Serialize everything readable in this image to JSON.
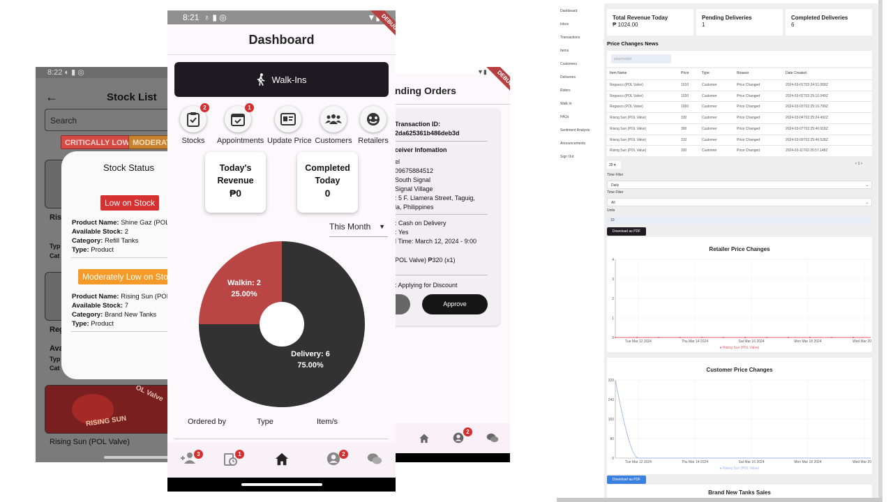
{
  "stock_list": {
    "time": "8:22",
    "title": "Stock List",
    "search_placeholder": "Search",
    "chips": [
      "CRITICALLY LOW",
      "MODERATE"
    ],
    "bg_items": [
      "Ris",
      "Typ",
      "Cat",
      "Reg",
      "Ava",
      "Typ",
      "Cat"
    ],
    "bg_bottom_label": "Rising Sun (POL Valve)",
    "bg_brand": "RISING SUN",
    "bg_valve": "OL Valve",
    "dialog": {
      "title": "Stock Status",
      "low_badge": "Low on Stock",
      "moderate_badge": "Moderately Low on Sto",
      "items": [
        {
          "name_label": "Product Name:",
          "name": "Shine Gaz (POL V",
          "stock_label": "Available Stock:",
          "stock": "2",
          "category_label": "Category:",
          "category": "Refill Tanks",
          "type_label": "Type:",
          "type": "Product"
        },
        {
          "name_label": "Product Name:",
          "name": "Rising Sun (POL V",
          "stock_label": "Available Stock:",
          "stock": "7",
          "category_label": "Category:",
          "category": "Brand New Tanks",
          "type_label": "Type:",
          "type": "Product"
        }
      ]
    }
  },
  "dashboard": {
    "time": "8:21",
    "debug": "DEBUG",
    "title": "Dashboard",
    "walkin_button": "Walk-Ins",
    "actions": [
      {
        "label": "Stocks",
        "badge": "2",
        "icon": "clipboard-check-icon"
      },
      {
        "label": "Appointments",
        "badge": "1",
        "icon": "calendar-check-icon"
      },
      {
        "label": "Update Price",
        "badge": "",
        "icon": "price-tag-icon"
      },
      {
        "label": "Customers",
        "badge": "",
        "icon": "group-icon"
      },
      {
        "label": "Retailers",
        "badge": "",
        "icon": "retailers-icon"
      }
    ],
    "stats": [
      {
        "line1": "Today's",
        "line2": "Revenue",
        "value": "₱0"
      },
      {
        "line1": "Completed",
        "line2": "Today",
        "value": "0"
      }
    ],
    "period": "This Month",
    "chart_data": {
      "type": "pie",
      "categories": [
        "Walkin",
        "Delivery"
      ],
      "values": [
        2,
        6
      ],
      "labels": [
        "Walkin: 2",
        "Delivery: 6"
      ],
      "percent_labels": [
        "25.00%",
        "75.00%"
      ],
      "colors": [
        "#b94545",
        "#323232"
      ]
    },
    "table_headers": [
      "Ordered by",
      "Type",
      "Item/s"
    ],
    "bottom_nav": [
      {
        "icon": "person-add-icon",
        "badge": "3"
      },
      {
        "icon": "pending-clipboard-icon",
        "badge": "1"
      },
      {
        "icon": "home-icon",
        "badge": ""
      },
      {
        "icon": "account-circle-icon",
        "badge": "2"
      },
      {
        "icon": "chat-icon",
        "badge": ""
      }
    ]
  },
  "pending": {
    "title": "nding Orders",
    "debug": "DEBUG",
    "transaction_label": "Transaction ID:",
    "transaction_id": "2da625361b486deb3d",
    "receiver_heading": "ceiver Infomation",
    "receiver_lines": [
      "el",
      "09675884512",
      "South Signal",
      "Signal Village",
      ": 5 F. Llamera Street, Taguig,",
      "la, Philippines"
    ],
    "payment_lines": [
      ": Cash on Delivery",
      ": Yes",
      "l Time: March 12, 2024 - 9:00"
    ],
    "item_line": "POL Valve)  ₱320 (x1)",
    "discount_line": ": Applying for Discount",
    "approve": "Approve",
    "nav_badge": "2"
  },
  "web": {
    "sidebar": [
      "Dashboard",
      "Inbox",
      "Transactions",
      "Items",
      "Customers",
      "Deliveries",
      "Riders",
      "Walk In",
      "FAQs",
      "Sentiment Analysis",
      "Announcements",
      "Sign Out"
    ],
    "cards": [
      {
        "label": "Total Revenue Today",
        "value": "₱ 1024.00"
      },
      {
        "label": "Pending Deliveries",
        "value": "1"
      },
      {
        "label": "Completed Deliveries",
        "value": "6"
      }
    ],
    "news_title": "Price Changes News",
    "search_placeholder": "placeholder",
    "table_headers": [
      "Item Name",
      "Price",
      "Type",
      "Reason",
      "Date Created"
    ],
    "rows": [
      [
        "Regasco (POL Valve)",
        "1010",
        "Customer",
        "Price Changed",
        "2024-03-01T02:24:51.068Z"
      ],
      [
        "Regasco (POL Valve)",
        "1020",
        "Customer",
        "Price Changed",
        "2024-03-02T02:25:10.049Z"
      ],
      [
        "Regasco (POL Valve)",
        "1000",
        "Customer",
        "Price Changed",
        "2024-03-03T02:25:16.799Z"
      ],
      [
        "Rising Sun (POL Valve)",
        "330",
        "Customer",
        "Price Changed",
        "2024-03-04T02:25:24.492Z"
      ],
      [
        "Rising Sun (POL Valve)",
        "300",
        "Customer",
        "Price Changed",
        "2024-03-07T02:25:40.918Z"
      ],
      [
        "Rising Sun (POL Valve)",
        "310",
        "Customer",
        "Price Changed",
        "2024-03-09T02:25:49.528Z"
      ],
      [
        "Rising Sun (POL Valve)",
        "320",
        "Customer",
        "Price Changed",
        "2024-03-11T02:25:57.148Z"
      ]
    ],
    "page_size": "20",
    "page_number": "1",
    "time_filter_label": "Time Filter",
    "time_filter_value": "Daily",
    "time_filter2_label": "Time Filter",
    "time_filter2_value": "All",
    "units_label": "Units",
    "units_value": "10",
    "download_pdf": "Download as PDF",
    "download_pdf2": "Download as PDF",
    "retailer_chart": {
      "type": "line",
      "title": "Retailer Price Changes",
      "x": [
        "Tue Mar 12 2024",
        "Thu Mar 14 2024",
        "Sat Mar 16 2024",
        "Mon Mar 18 2024",
        "Wed Mar 20 20"
      ],
      "yticks": [
        "0",
        "1",
        "2",
        "3",
        "4"
      ],
      "ylim": [
        0,
        4
      ],
      "series": [
        {
          "name": "Rising Sun (POL Valve)",
          "values": [
            0,
            0,
            0,
            0,
            0
          ],
          "color": "#e05c6b"
        }
      ]
    },
    "customer_chart": {
      "type": "line",
      "title": "Customer Price Changes",
      "x": [
        "Tue Mar 12 2024",
        "Thu Mar 14 2024",
        "Sat Mar 16 2024",
        "Mon Mar 18 2024",
        "Wed Mar 20 20"
      ],
      "yticks": [
        "0",
        "80",
        "160",
        "240",
        "320"
      ],
      "ylim": [
        0,
        320
      ],
      "series": [
        {
          "name": "Rising Sun (POL Valve)",
          "values": [
            320,
            0,
            0,
            0,
            0
          ],
          "color": "#9ab6e8"
        }
      ]
    },
    "bottom_title": "Brand New Tanks Sales"
  }
}
